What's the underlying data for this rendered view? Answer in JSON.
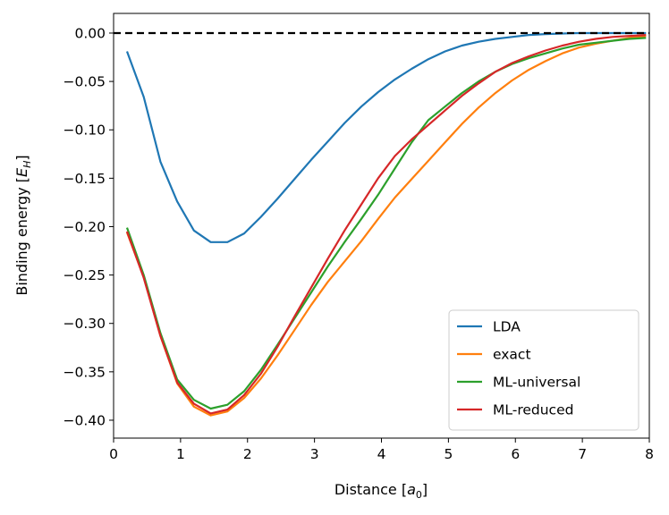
{
  "chart_data": {
    "type": "line",
    "xlabel": "Distance [a0]",
    "ylabel": "Binding energy [EH]",
    "xlim": [
      0,
      8
    ],
    "ylim": [
      -0.4185,
      0.0203
    ],
    "xticks": [
      "0",
      "1",
      "2",
      "3",
      "4",
      "5",
      "6",
      "7",
      "8"
    ],
    "yticks": [
      "0.00",
      "−0.05",
      "−0.10",
      "−0.15",
      "−0.20",
      "−0.25",
      "−0.30",
      "−0.35",
      "−0.40"
    ],
    "ytick_values": [
      0,
      -0.05,
      -0.1,
      -0.15,
      -0.2,
      -0.25,
      -0.3,
      -0.35,
      -0.4
    ],
    "xtick_values": [
      0,
      1,
      2,
      3,
      4,
      5,
      6,
      7,
      8
    ],
    "grid": false,
    "legend_placement": "lower-right",
    "reference_line": {
      "y": 0,
      "style": "dashed",
      "color": "#000000"
    },
    "x": [
      0.2,
      0.45,
      0.7,
      0.95,
      1.2,
      1.45,
      1.7,
      1.95,
      2.2,
      2.45,
      2.7,
      2.95,
      3.2,
      3.45,
      3.7,
      3.95,
      4.2,
      4.45,
      4.7,
      4.95,
      5.2,
      5.45,
      5.7,
      5.95,
      6.2,
      6.45,
      6.7,
      6.95,
      7.2,
      7.45,
      7.7,
      7.95
    ],
    "series": [
      {
        "name": "LDA",
        "color": "#1f77b4",
        "values": [
          -0.019,
          -0.066,
          -0.133,
          -0.174,
          -0.204,
          -0.216,
          -0.216,
          -0.207,
          -0.19,
          -0.171,
          -0.151,
          -0.131,
          -0.112,
          -0.093,
          -0.076,
          -0.061,
          -0.048,
          -0.037,
          -0.027,
          -0.019,
          -0.013,
          -0.009,
          -0.006,
          -0.004,
          -0.002,
          -0.001,
          -0.0005,
          0,
          0,
          0,
          0,
          0
        ]
      },
      {
        "name": "exact",
        "color": "#ff7f0e",
        "values": [
          -0.206,
          -0.252,
          -0.313,
          -0.362,
          -0.386,
          -0.395,
          -0.391,
          -0.377,
          -0.357,
          -0.333,
          -0.307,
          -0.281,
          -0.257,
          -0.236,
          -0.215,
          -0.192,
          -0.17,
          -0.151,
          -0.132,
          -0.113,
          -0.094,
          -0.077,
          -0.062,
          -0.049,
          -0.038,
          -0.029,
          -0.021,
          -0.015,
          -0.011,
          -0.008,
          -0.005,
          -0.003
        ]
      },
      {
        "name": "ML-universal",
        "color": "#2ca02c",
        "values": [
          -0.201,
          -0.25,
          -0.31,
          -0.358,
          -0.379,
          -0.388,
          -0.384,
          -0.37,
          -0.348,
          -0.322,
          -0.295,
          -0.268,
          -0.241,
          -0.216,
          -0.192,
          -0.167,
          -0.14,
          -0.113,
          -0.09,
          -0.076,
          -0.062,
          -0.05,
          -0.04,
          -0.032,
          -0.026,
          -0.021,
          -0.016,
          -0.012,
          -0.01,
          -0.008,
          -0.006,
          -0.005
        ]
      },
      {
        "name": "ML-reduced",
        "color": "#d62728",
        "values": [
          -0.205,
          -0.253,
          -0.313,
          -0.361,
          -0.383,
          -0.393,
          -0.389,
          -0.374,
          -0.352,
          -0.324,
          -0.293,
          -0.263,
          -0.233,
          -0.204,
          -0.177,
          -0.15,
          -0.127,
          -0.11,
          -0.095,
          -0.08,
          -0.065,
          -0.052,
          -0.04,
          -0.031,
          -0.024,
          -0.018,
          -0.013,
          -0.009,
          -0.006,
          -0.004,
          -0.003,
          -0.002
        ]
      }
    ]
  },
  "labels": {
    "x_main": "Distance [",
    "x_var": "a",
    "x_sub": "0",
    "x_end": "]",
    "y_main": "Binding energy [",
    "y_var": "E",
    "y_sub": "H",
    "y_end": "]"
  }
}
